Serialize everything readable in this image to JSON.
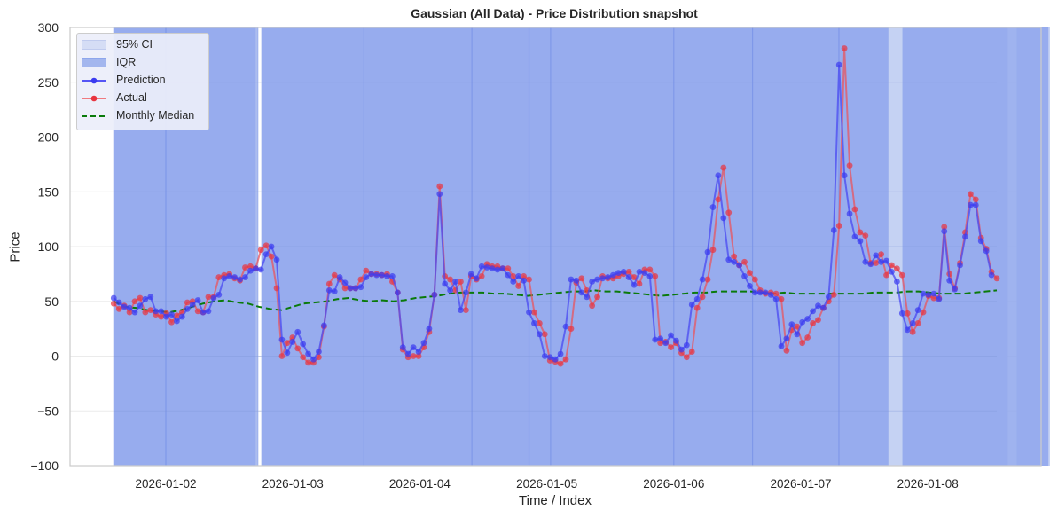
{
  "chart_data": {
    "type": "line",
    "title": "Gaussian (All Data) - Price Distribution snapshot",
    "xlabel": "Time / Index",
    "ylabel": "Price",
    "ylim": [
      -100,
      300
    ],
    "yticks": [
      -100,
      -50,
      0,
      50,
      100,
      150,
      200,
      250,
      300
    ],
    "ytick_labels": [
      "−100",
      "−50",
      "0",
      "50",
      "100",
      "150",
      "200",
      "250",
      "300"
    ],
    "xticks": [
      "2026-01-02",
      "2026-01-03",
      "2026-01-04",
      "2026-01-05",
      "2026-01-06",
      "2026-01-07",
      "2026-01-08"
    ],
    "x_range_days": [
      -0.76,
      7.02
    ],
    "x_start_day": -0.41,
    "x_step_days": 0.0417,
    "grid": true,
    "legend_position": "upper left",
    "legend": [
      "95% CI",
      "IQR",
      "Prediction",
      "Actual",
      "Monthly Median"
    ],
    "colors": {
      "ci": "#c5d2f3",
      "iqr": "#8ea6ec",
      "prediction": "#3b3bf0",
      "actual": "#e8333f",
      "median": "#0a7a0a"
    },
    "series": [
      {
        "name": "Actual",
        "values": [
          48,
          43,
          46,
          40,
          50,
          53,
          40,
          42,
          38,
          36,
          39,
          31,
          37,
          40,
          49,
          50,
          41,
          40,
          54,
          54,
          72,
          74,
          75,
          71,
          69,
          81,
          82,
          80,
          97,
          101,
          91,
          62,
          0,
          12,
          17,
          7,
          -1,
          -6,
          -6,
          -1,
          27,
          66,
          74,
          70,
          62,
          62,
          62,
          70,
          78,
          75,
          75,
          74,
          75,
          68,
          58,
          6,
          -1,
          0,
          0,
          8,
          22,
          56,
          155,
          73,
          70,
          60,
          68,
          42,
          73,
          70,
          73,
          84,
          82,
          82,
          80,
          80,
          73,
          64,
          73,
          70,
          40,
          30,
          20,
          -4,
          -5,
          -7,
          -3,
          25,
          67,
          71,
          60,
          46,
          54,
          73,
          71,
          71,
          73,
          75,
          77,
          72,
          66,
          79,
          79,
          73,
          12,
          13,
          8,
          12,
          3,
          -1,
          4,
          44,
          54,
          70,
          97,
          143,
          172,
          131,
          91,
          83,
          86,
          76,
          70,
          60,
          57,
          58,
          57,
          52,
          5,
          24,
          27,
          12,
          17,
          30,
          33,
          44,
          50,
          56,
          119,
          281,
          174,
          134,
          113,
          110,
          85,
          85,
          93,
          74,
          83,
          80,
          74,
          39,
          22,
          30,
          40,
          55,
          53,
          53,
          118,
          75,
          62,
          85,
          113,
          148,
          143,
          108,
          98,
          77,
          71
        ],
        "note": "approximate hourly Actual prices read from chart"
      },
      {
        "name": "Prediction",
        "values": [
          53,
          49,
          45,
          44,
          40,
          46,
          52,
          54,
          41,
          41,
          36,
          38,
          32,
          36,
          43,
          47,
          51,
          40,
          41,
          53,
          56,
          71,
          73,
          72,
          70,
          72,
          78,
          80,
          79,
          93,
          100,
          88,
          15,
          3,
          13,
          22,
          11,
          2,
          -3,
          4,
          28,
          60,
          59,
          72,
          67,
          62,
          62,
          63,
          72,
          75,
          74,
          74,
          73,
          73,
          58,
          8,
          2,
          8,
          4,
          12,
          25,
          56,
          148,
          66,
          60,
          68,
          42,
          58,
          75,
          71,
          82,
          81,
          80,
          79,
          80,
          74,
          68,
          73,
          69,
          40,
          30,
          20,
          0,
          -1,
          -3,
          2,
          27,
          70,
          69,
          58,
          54,
          68,
          70,
          71,
          72,
          74,
          76,
          77,
          72,
          65,
          77,
          76,
          73,
          15,
          16,
          12,
          19,
          14,
          6,
          10,
          47,
          52,
          70,
          95,
          136,
          165,
          126,
          88,
          86,
          83,
          73,
          64,
          58,
          58,
          58,
          56,
          52,
          9,
          16,
          29,
          20,
          31,
          34,
          41,
          46,
          44,
          54,
          115,
          266,
          165,
          130,
          109,
          105,
          86,
          84,
          92,
          86,
          87,
          77,
          68,
          39,
          24,
          30,
          42,
          57,
          56,
          57,
          52,
          114,
          69,
          61,
          83,
          109,
          138,
          138,
          105,
          96,
          74
        ]
      },
      {
        "name": "Monthly Median",
        "values": [
          50,
          45,
          44,
          42,
          41,
          40,
          42,
          45,
          48,
          50,
          51,
          49,
          48,
          45,
          43,
          42,
          45,
          48,
          49,
          50,
          52,
          53,
          51,
          50,
          51,
          50,
          51,
          53,
          54,
          55,
          57,
          58,
          58,
          58,
          57,
          57,
          56,
          55,
          56,
          57,
          58,
          59,
          59,
          60,
          59,
          59,
          58,
          57,
          56,
          55,
          56,
          57,
          58,
          58,
          59,
          59,
          59,
          59,
          58,
          57,
          58,
          57,
          57,
          57,
          57,
          57,
          57,
          57,
          58,
          58,
          58,
          59,
          59,
          58,
          57,
          57,
          57,
          58,
          59,
          60
        ],
        "note": "smooth dashed green line, ~80 evenly spaced samples"
      }
    ],
    "ci_gaps_days": [
      [
        0.73,
        0.75
      ],
      [
        6.63,
        6.7
      ],
      [
        6.99,
        7.01
      ]
    ],
    "iqr_gaps_days": [
      [
        0.71,
        0.76
      ],
      [
        5.69,
        5.8
      ],
      [
        6.95,
        7.03
      ]
    ]
  }
}
